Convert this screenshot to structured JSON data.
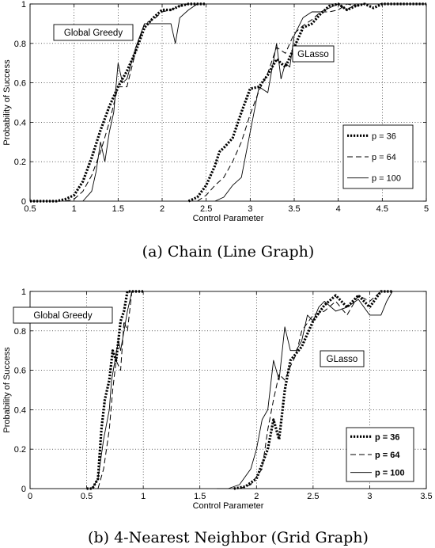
{
  "chart_data": [
    {
      "type": "line",
      "caption": "(a) Chain (Line Graph)",
      "xlabel": "Control Parameter",
      "ylabel": "Probability of Success",
      "xlim": [
        0.5,
        5
      ],
      "ylim": [
        0,
        1
      ],
      "xticks": [
        "0.5",
        "1",
        "1.5",
        "2",
        "2.5",
        "3",
        "3.5",
        "4",
        "4.5",
        "5"
      ],
      "yticks": [
        "0",
        "0.2",
        "0.4",
        "0.6",
        "0.8",
        "1"
      ],
      "grid": true,
      "legend_placement": "right-middle",
      "legend_bold": false,
      "annotations": [
        "Global Greedy",
        "GLasso"
      ],
      "series": [
        {
          "name": "p = 36",
          "style": "dotted",
          "groups": [
            {
              "label": "Global Greedy",
              "x": [
                0.5,
                0.8,
                0.9,
                1.0,
                1.1,
                1.2,
                1.3,
                1.4,
                1.5,
                1.6,
                1.7,
                1.8,
                1.9,
                2.0,
                2.1,
                2.2,
                2.3,
                2.5
              ],
              "y": [
                0,
                0,
                0.01,
                0.03,
                0.1,
                0.22,
                0.36,
                0.48,
                0.58,
                0.66,
                0.76,
                0.88,
                0.93,
                0.97,
                0.97,
                0.99,
                1.0,
                1.0
              ]
            },
            {
              "label": "GLasso",
              "x": [
                2.3,
                2.4,
                2.5,
                2.6,
                2.65,
                2.7,
                2.8,
                2.9,
                3.0,
                3.1,
                3.2,
                3.3,
                3.4,
                3.5,
                3.6,
                3.7,
                3.8,
                3.9,
                4.0,
                4.1,
                4.2,
                4.3,
                4.4,
                4.5,
                4.7,
                5.0
              ],
              "y": [
                0,
                0.02,
                0.08,
                0.18,
                0.25,
                0.27,
                0.32,
                0.45,
                0.57,
                0.58,
                0.64,
                0.72,
                0.68,
                0.78,
                0.88,
                0.9,
                0.95,
                0.99,
                1.0,
                0.97,
                0.99,
                1.0,
                0.98,
                1.0,
                1.0,
                1.0
              ]
            }
          ]
        },
        {
          "name": "p = 64",
          "style": "dashed",
          "groups": [
            {
              "label": "Global Greedy",
              "x": [
                0.9,
                1.0,
                1.1,
                1.2,
                1.3,
                1.4,
                1.5,
                1.6,
                1.7,
                1.8,
                1.9,
                2.0,
                2.1,
                2.2,
                2.3,
                2.5
              ],
              "y": [
                0,
                0.01,
                0.05,
                0.13,
                0.25,
                0.4,
                0.58,
                0.58,
                0.76,
                0.9,
                0.92,
                0.96,
                0.97,
                0.99,
                1.0,
                1.0
              ]
            },
            {
              "label": "GLasso",
              "x": [
                2.4,
                2.5,
                2.6,
                2.7,
                2.8,
                2.9,
                3.0,
                3.1,
                3.2,
                3.3,
                3.4,
                3.5,
                3.6,
                3.7,
                3.8,
                3.9,
                4.0,
                4.1,
                4.2,
                4.3,
                4.5,
                5.0
              ],
              "y": [
                0,
                0.03,
                0.08,
                0.12,
                0.2,
                0.3,
                0.44,
                0.56,
                0.65,
                0.78,
                0.75,
                0.85,
                0.89,
                0.92,
                0.96,
                0.96,
                0.97,
                1.0,
                0.99,
                1.0,
                1.0,
                1.0
              ]
            }
          ]
        },
        {
          "name": "p = 100",
          "style": "solid",
          "groups": [
            {
              "label": "Global Greedy",
              "x": [
                1.1,
                1.2,
                1.25,
                1.3,
                1.35,
                1.4,
                1.45,
                1.5,
                1.55,
                1.6,
                1.7,
                1.8,
                1.9,
                2.0,
                2.1,
                2.15,
                2.2,
                2.3,
                2.4,
                2.5
              ],
              "y": [
                0,
                0.05,
                0.15,
                0.3,
                0.2,
                0.35,
                0.45,
                0.7,
                0.6,
                0.62,
                0.78,
                0.9,
                0.9,
                0.9,
                0.9,
                0.8,
                0.93,
                0.97,
                1.0,
                1.0
              ]
            },
            {
              "label": "GLasso",
              "x": [
                2.6,
                2.7,
                2.8,
                2.9,
                3.0,
                3.1,
                3.2,
                3.3,
                3.35,
                3.4,
                3.45,
                3.5,
                3.6,
                3.7,
                3.8,
                3.9,
                4.0,
                4.1,
                4.2,
                4.3,
                4.5,
                5.0
              ],
              "y": [
                0,
                0.02,
                0.08,
                0.12,
                0.35,
                0.58,
                0.55,
                0.8,
                0.62,
                0.7,
                0.68,
                0.84,
                0.93,
                0.96,
                0.96,
                0.98,
                1.0,
                0.97,
                1.0,
                1.0,
                1.0,
                1.0
              ]
            }
          ]
        }
      ]
    },
    {
      "type": "line",
      "caption": "(b) 4-Nearest Neighbor (Grid Graph)",
      "xlabel": "Control Parameter",
      "ylabel": "Probability of Success",
      "xlim": [
        0,
        3.5
      ],
      "ylim": [
        0,
        1
      ],
      "xticks": [
        "0",
        "0.5",
        "1",
        "1.5",
        "2",
        "2.5",
        "3",
        "3.5"
      ],
      "yticks": [
        "0",
        "0.2",
        "0.4",
        "0.6",
        "0.8",
        "1"
      ],
      "grid": true,
      "legend_placement": "bottom-right",
      "legend_bold": true,
      "annotations": [
        "Global Greedy",
        "GLasso"
      ],
      "series": [
        {
          "name": "p = 36",
          "style": "dotted",
          "groups": [
            {
              "label": "Global Greedy",
              "x": [
                0.5,
                0.55,
                0.6,
                0.63,
                0.66,
                0.7,
                0.73,
                0.76,
                0.8,
                0.83,
                0.86,
                0.9,
                1.0
              ],
              "y": [
                0,
                0.0,
                0.05,
                0.3,
                0.45,
                0.55,
                0.7,
                0.65,
                0.85,
                0.9,
                1.0,
                1.0,
                1.0
              ]
            },
            {
              "label": "GLasso",
              "x": [
                1.8,
                1.9,
                2.0,
                2.1,
                2.15,
                2.2,
                2.25,
                2.3,
                2.4,
                2.5,
                2.6,
                2.7,
                2.8,
                2.9,
                3.0,
                3.1,
                3.2
              ],
              "y": [
                0,
                0.01,
                0.05,
                0.2,
                0.35,
                0.25,
                0.5,
                0.65,
                0.72,
                0.85,
                0.93,
                0.98,
                0.92,
                0.98,
                0.92,
                1.0,
                1.0
              ]
            }
          ]
        },
        {
          "name": "p = 64",
          "style": "dashed",
          "groups": [
            {
              "label": "Global Greedy",
              "x": [
                0.6,
                0.65,
                0.7,
                0.73,
                0.76,
                0.8,
                0.83,
                0.86,
                0.9,
                1.0
              ],
              "y": [
                0,
                0.1,
                0.3,
                0.5,
                0.65,
                0.6,
                0.85,
                0.8,
                1.0,
                1.0
              ]
            },
            {
              "label": "GLasso",
              "x": [
                1.85,
                1.95,
                2.05,
                2.1,
                2.15,
                2.2,
                2.25,
                2.3,
                2.35,
                2.4,
                2.5,
                2.6,
                2.7,
                2.8,
                2.9,
                3.0,
                3.1,
                3.2
              ],
              "y": [
                0,
                0.02,
                0.1,
                0.3,
                0.45,
                0.58,
                0.55,
                0.62,
                0.68,
                0.8,
                0.88,
                0.9,
                0.95,
                0.88,
                0.98,
                0.95,
                1.0,
                1.0
              ]
            }
          ]
        },
        {
          "name": "p = 100",
          "style": "solid",
          "groups": [
            {
              "label": "Global Greedy",
              "x": [
                0.55,
                0.6,
                0.65,
                0.7,
                0.72,
                0.75,
                0.78,
                0.8,
                0.83,
                0.86,
                0.9,
                1.0
              ],
              "y": [
                0,
                0.05,
                0.25,
                0.4,
                0.55,
                0.65,
                0.75,
                0.7,
                0.8,
                0.9,
                1.0,
                1.0
              ]
            },
            {
              "label": "GLasso",
              "x": [
                1.65,
                1.75,
                1.85,
                1.95,
                2.0,
                2.05,
                2.1,
                2.15,
                2.2,
                2.25,
                2.3,
                2.35,
                2.4,
                2.45,
                2.5,
                2.55,
                2.6,
                2.7,
                2.8,
                2.9,
                3.0,
                3.1,
                3.15,
                3.2
              ],
              "y": [
                0,
                0.0,
                0.02,
                0.1,
                0.2,
                0.35,
                0.4,
                0.65,
                0.55,
                0.82,
                0.7,
                0.7,
                0.75,
                0.88,
                0.85,
                0.92,
                0.95,
                0.9,
                0.92,
                0.96,
                0.88,
                0.88,
                0.95,
                1.0
              ]
            }
          ]
        }
      ]
    }
  ]
}
